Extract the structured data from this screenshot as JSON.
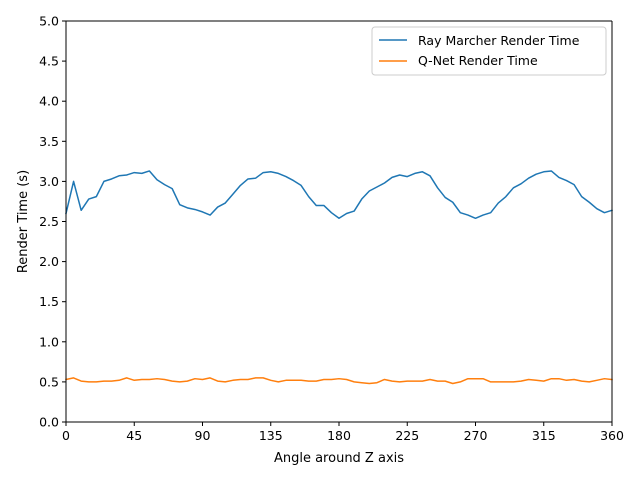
{
  "chart_data": {
    "type": "line",
    "title": "",
    "xlabel": "Angle around Z axis",
    "ylabel": "Render Time (s)",
    "xlim": [
      0,
      360
    ],
    "ylim": [
      0,
      5
    ],
    "xticks": [
      0,
      45,
      90,
      135,
      180,
      225,
      270,
      315,
      360
    ],
    "xtick_labels": [
      "0",
      "45",
      "90",
      "135",
      "180",
      "225",
      "270",
      "315",
      "360"
    ],
    "yticks": [
      0,
      0.5,
      1,
      1.5,
      2,
      2.5,
      3,
      3.5,
      4,
      4.5,
      5
    ],
    "ytick_labels": [
      "0.0",
      "0.5",
      "1.0",
      "1.5",
      "2.0",
      "2.5",
      "3.0",
      "3.5",
      "4.0",
      "4.5",
      "5.0"
    ],
    "grid": false,
    "legend_position": "top-right",
    "x": [
      0,
      5,
      10,
      15,
      20,
      25,
      30,
      35,
      40,
      45,
      50,
      55,
      60,
      65,
      70,
      75,
      80,
      85,
      90,
      95,
      100,
      105,
      110,
      115,
      120,
      125,
      130,
      135,
      140,
      145,
      150,
      155,
      160,
      165,
      170,
      175,
      180,
      185,
      190,
      195,
      200,
      205,
      210,
      215,
      220,
      225,
      230,
      235,
      240,
      245,
      250,
      255,
      260,
      265,
      270,
      275,
      280,
      285,
      290,
      295,
      300,
      305,
      310,
      315,
      320,
      325,
      330,
      335,
      340,
      345,
      350,
      355,
      360
    ],
    "series": [
      {
        "name": "Ray Marcher Render Time",
        "color": "#1f77b4",
        "values": [
          2.6,
          3.0,
          2.64,
          2.78,
          2.81,
          3.0,
          3.03,
          3.07,
          3.08,
          3.11,
          3.1,
          3.13,
          3.02,
          2.96,
          2.91,
          2.71,
          2.67,
          2.65,
          2.62,
          2.58,
          2.68,
          2.73,
          2.84,
          2.95,
          3.03,
          3.04,
          3.11,
          3.12,
          3.1,
          3.06,
          3.01,
          2.95,
          2.81,
          2.7,
          2.7,
          2.61,
          2.54,
          2.6,
          2.63,
          2.78,
          2.88,
          2.93,
          2.98,
          3.05,
          3.08,
          3.06,
          3.1,
          3.12,
          3.07,
          2.92,
          2.8,
          2.74,
          2.61,
          2.58,
          2.54,
          2.58,
          2.61,
          2.73,
          2.81,
          2.92,
          2.97,
          3.04,
          3.09,
          3.12,
          3.13,
          3.05,
          3.01,
          2.96,
          2.81,
          2.74,
          2.66,
          2.61,
          2.64
        ]
      },
      {
        "name": "Q-Net Render Time",
        "color": "#ff7f0e",
        "values": [
          0.53,
          0.55,
          0.51,
          0.5,
          0.5,
          0.51,
          0.51,
          0.52,
          0.55,
          0.52,
          0.53,
          0.53,
          0.54,
          0.53,
          0.51,
          0.5,
          0.51,
          0.54,
          0.53,
          0.55,
          0.51,
          0.5,
          0.52,
          0.53,
          0.53,
          0.55,
          0.55,
          0.52,
          0.5,
          0.52,
          0.52,
          0.52,
          0.51,
          0.51,
          0.53,
          0.53,
          0.54,
          0.53,
          0.5,
          0.49,
          0.48,
          0.49,
          0.53,
          0.51,
          0.5,
          0.51,
          0.51,
          0.51,
          0.53,
          0.51,
          0.51,
          0.48,
          0.5,
          0.54,
          0.54,
          0.54,
          0.5,
          0.5,
          0.5,
          0.5,
          0.51,
          0.53,
          0.52,
          0.51,
          0.54,
          0.54,
          0.52,
          0.53,
          0.51,
          0.5,
          0.52,
          0.54,
          0.53
        ]
      }
    ]
  }
}
